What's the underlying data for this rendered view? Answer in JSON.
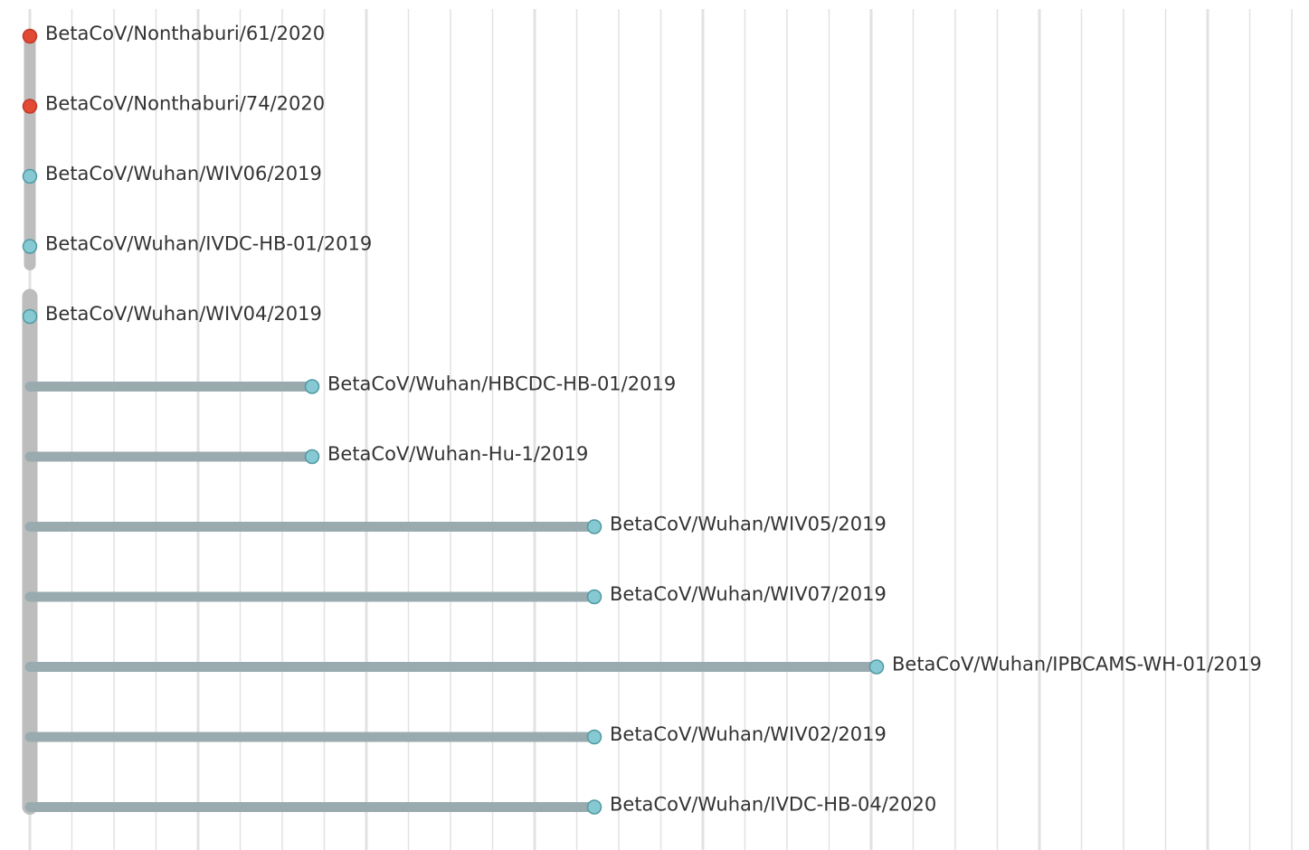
{
  "tree": {
    "node_colors": {
      "Thailand": "#e34a33",
      "China": "#86c9d2"
    },
    "node_stroke": "#4f9aa3",
    "root_branch_color": "#bdbdbd",
    "branch_color": "#9aabb0",
    "grid_color": "#e2e2e2",
    "tips": [
      {
        "name": "BetaCoV/Nonthaburi/61/2020",
        "divergence": 0,
        "group": "Thailand"
      },
      {
        "name": "BetaCoV/Nonthaburi/74/2020",
        "divergence": 0,
        "group": "Thailand"
      },
      {
        "name": "BetaCoV/Wuhan/WIV06/2019",
        "divergence": 0,
        "group": "China"
      },
      {
        "name": "BetaCoV/Wuhan/IVDC-HB-01/2019",
        "divergence": 0,
        "group": "China"
      },
      {
        "name": "BetaCoV/Wuhan/WIV04/2019",
        "divergence": 0,
        "group": "China"
      },
      {
        "name": "BetaCoV/Wuhan/HBCDC-HB-01/2019",
        "divergence": 1,
        "group": "China"
      },
      {
        "name": "BetaCoV/Wuhan-Hu-1/2019",
        "divergence": 1,
        "group": "China"
      },
      {
        "name": "BetaCoV/Wuhan/WIV05/2019",
        "divergence": 2,
        "group": "China"
      },
      {
        "name": "BetaCoV/Wuhan/WIV07/2019",
        "divergence": 2,
        "group": "China"
      },
      {
        "name": "BetaCoV/Wuhan/IPBCAMS-WH-01/2019",
        "divergence": 3,
        "group": "China"
      },
      {
        "name": "BetaCoV/Wuhan/WIV02/2019",
        "divergence": 2,
        "group": "China"
      },
      {
        "name": "BetaCoV/Wuhan/IVDC-HB-04/2020",
        "divergence": 2,
        "group": "China"
      }
    ]
  }
}
